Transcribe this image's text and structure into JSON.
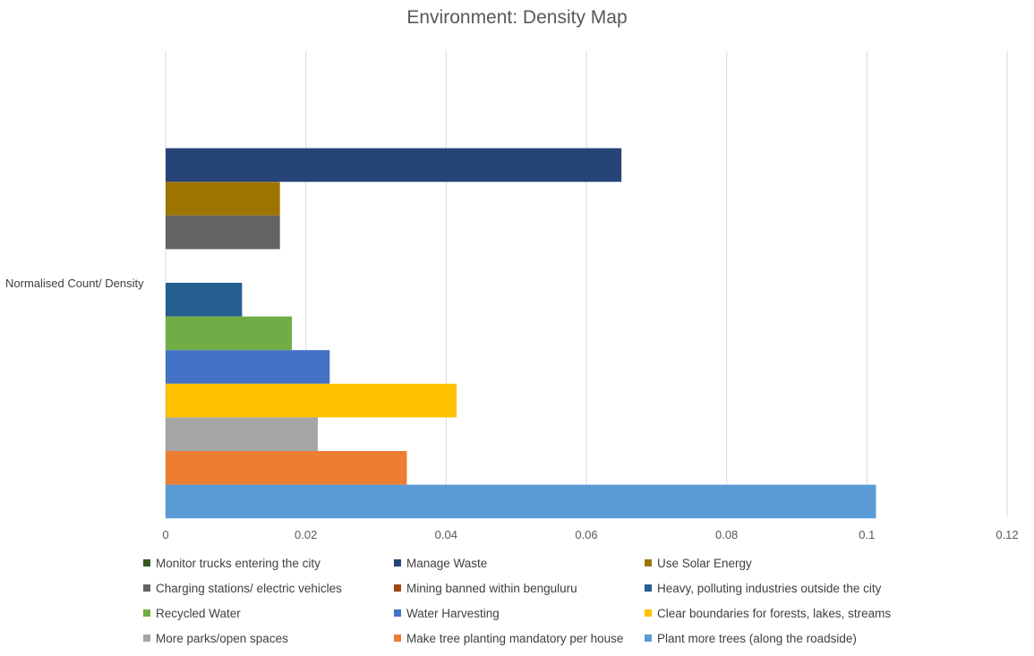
{
  "chart_data": {
    "type": "bar",
    "orientation": "horizontal",
    "title": "Environment: Density Map",
    "category": "Normalised Count/ Density",
    "xlim": [
      0,
      0.12
    ],
    "xticks": [
      "0",
      "0.02",
      "0.04",
      "0.06",
      "0.08",
      "0.1",
      "0.12"
    ],
    "grid": true,
    "legend_position": "bottom",
    "series": [
      {
        "name": "Monitor trucks entering the city",
        "value": 0,
        "color": "#375623"
      },
      {
        "name": "Manage Waste",
        "value": 0.065,
        "color": "#264478"
      },
      {
        "name": "Use Solar Energy",
        "value": 0.0163,
        "color": "#9E7400"
      },
      {
        "name": "Charging stations/ electric vehicles",
        "value": 0.0163,
        "color": "#636363"
      },
      {
        "name": "Mining banned within benguluru",
        "value": 0,
        "color": "#A0470D"
      },
      {
        "name": "Heavy, polluting industries outside the city",
        "value": 0.0109,
        "color": "#255E91"
      },
      {
        "name": "Recycled Water",
        "value": 0.018,
        "color": "#70AD47"
      },
      {
        "name": "Water Harvesting",
        "value": 0.0234,
        "color": "#4472C4"
      },
      {
        "name": "Clear boundaries for forests, lakes, streams",
        "value": 0.0415,
        "color": "#FFC000"
      },
      {
        "name": "More parks/open spaces",
        "value": 0.0217,
        "color": "#A5A5A5"
      },
      {
        "name": "Make tree planting mandatory  per house",
        "value": 0.0344,
        "color": "#ED7D31"
      },
      {
        "name": "Plant more trees (along the roadside)",
        "value": 0.1013,
        "color": "#5B9BD5"
      }
    ]
  }
}
